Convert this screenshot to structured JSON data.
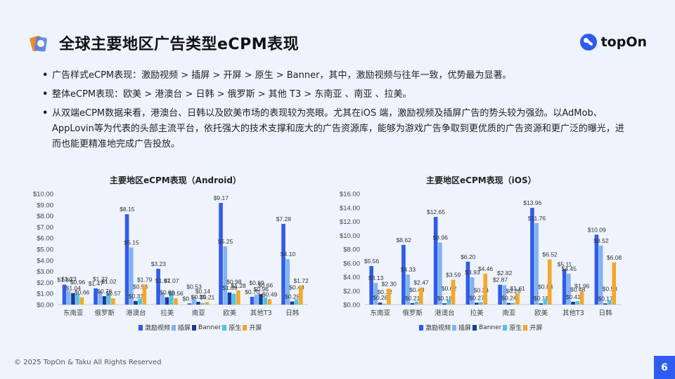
{
  "header": {
    "title": "全球主要地区广告类型eCPM表现",
    "brand": "topOn"
  },
  "bullets": [
    "广告样式eCPM表现：激励视频 > 插屏 > 开屏 > 原生 > Banner，其中，激励视频与往年一致，优势最为显著。",
    "整体eCPM表现：欧美 > 港澳台 > 日韩 > 俄罗斯 > 其他 T3 > 东南亚 、南亚 、拉美。",
    "从双端eCPM数据来看，港澳台、日韩以及欧美市场的表现较为亮眼。尤其在iOS 端，激励视频及插屏广告的势头较为强劲。以AdMob、AppLovin等为代表的头部主流平台，依托强大的技术支撑和庞大的广告资源库，能够为游戏广告争取到更优质的广告资源和更广泛的曝光，进而也能更精准地完成广告投放。"
  ],
  "colors": {
    "激励视频": "#2f5cf0",
    "插屏": "#7fb3f5",
    "Banner": "#1b3b9c",
    "原生": "#4fc4ea",
    "开屏": "#f7a823"
  },
  "legend": [
    "激励视频",
    "插屏",
    "Banner",
    "原生",
    "开屏"
  ],
  "chart_data": [
    {
      "type": "bar",
      "title": "主要地区eCPM表现（Android）",
      "categories": [
        "东南亚",
        "俄罗斯",
        "港澳台",
        "拉美",
        "南亚",
        "欧美",
        "其他T3",
        "日韩"
      ],
      "series": [
        {
          "name": "激励视频",
          "values": [
            1.8,
            1.47,
            8.15,
            3.23,
            0.11,
            9.17,
            0.7,
            7.28
          ]
        },
        {
          "name": "插屏",
          "values": [
            1.23,
            1.22,
            5.15,
            1.07,
            0.53,
            5.25,
            0.89,
            4.1
          ]
        },
        {
          "name": "Banner",
          "values": [
            1.04,
            0.76,
            0.33,
            0.66,
            0.25,
            1.09,
            0.96,
            0.28
          ]
        },
        {
          "name": "原生",
          "values": [
            0.96,
            1.02,
            0.53,
            1.07,
            0.14,
            0.98,
            0.66,
            0.48
          ]
        },
        {
          "name": "开屏",
          "values": [
            0.66,
            0.57,
            1.79,
            0.56,
            0.21,
            1.28,
            0.49,
            1.72
          ]
        }
      ],
      "ylim": [
        0,
        10
      ],
      "yticks": [
        "$0.00",
        "$1.00",
        "$2.00",
        "$3.00",
        "$4.00",
        "$5.00",
        "$6.00",
        "$7.00",
        "$8.00",
        "$9.00",
        "$10.00"
      ],
      "xlabel": "",
      "ylabel": "",
      "legend_position": "bottom",
      "grid": false
    },
    {
      "type": "bar",
      "title": "主要地区eCPM表现（iOS）",
      "categories": [
        "东南亚",
        "俄罗斯",
        "港澳台",
        "拉美",
        "南亚",
        "欧美",
        "其他T3",
        "日韩"
      ],
      "series": [
        {
          "name": "激励视频",
          "values": [
            5.56,
            8.62,
            12.65,
            6.2,
            2.87,
            13.96,
            5.11,
            10.09
          ]
        },
        {
          "name": "插屏",
          "values": [
            3.13,
            4.33,
            8.96,
            3.93,
            2.82,
            11.76,
            4.45,
            8.52
          ]
        },
        {
          "name": "Banner",
          "values": [
            0.28,
            0.21,
            0.18,
            0.27,
            0.24,
            0.18,
            0.41,
            0.17
          ]
        },
        {
          "name": "原生",
          "values": [
            0.12,
            0.43,
            0.62,
            0.34,
            0.26,
            0.84,
            0.48,
            0.58
          ]
        },
        {
          "name": "开屏",
          "values": [
            2.3,
            2.47,
            3.59,
            4.46,
            1.61,
            6.52,
            1.96,
            6.08
          ]
        }
      ],
      "ylim": [
        0,
        16
      ],
      "yticks": [
        "$0.00",
        "$2.00",
        "$4.00",
        "$6.00",
        "$8.00",
        "$10.00",
        "$12.00",
        "$14.00",
        "$16.00"
      ],
      "xlabel": "",
      "ylabel": "",
      "legend_position": "bottom",
      "grid": false
    }
  ],
  "footer": {
    "copyright": "© 2025 TopOn & Taku All Rights Reserved",
    "page_number": "6"
  }
}
